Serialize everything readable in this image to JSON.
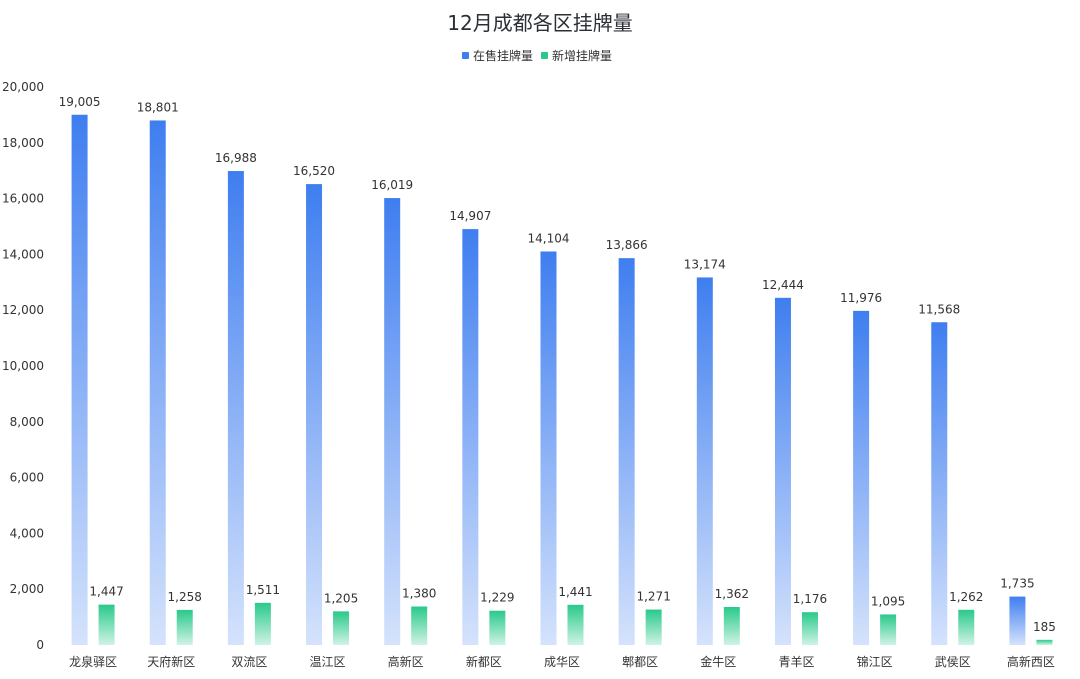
{
  "chart_data": {
    "type": "bar",
    "title": "12月成都各区挂牌量",
    "xlabel": "",
    "ylabel": "",
    "ylim": [
      0,
      20000
    ],
    "yticks": [
      0,
      2000,
      4000,
      6000,
      8000,
      10000,
      12000,
      14000,
      16000,
      18000,
      20000
    ],
    "ytick_labels": [
      "0",
      "2,000",
      "4,000",
      "6,000",
      "8,000",
      "10,000",
      "12,000",
      "14,000",
      "16,000",
      "18,000",
      "20,000"
    ],
    "grid": false,
    "legend_position": "top-center",
    "categories": [
      "龙泉驿区",
      "天府新区",
      "双流区",
      "温江区",
      "高新区",
      "新都区",
      "成华区",
      "郫都区",
      "金牛区",
      "青羊区",
      "锦江区",
      "武侯区",
      "高新西区"
    ],
    "series": [
      {
        "name": "在售挂牌量",
        "color": "#3f7ef0",
        "values": [
          19005,
          18801,
          16988,
          16520,
          16019,
          14907,
          14104,
          13866,
          13174,
          12444,
          11976,
          11568,
          1735
        ],
        "labels": [
          "19,005",
          "18,801",
          "16,988",
          "16,520",
          "16,019",
          "14,907",
          "14,104",
          "13,866",
          "13,174",
          "12,444",
          "11,976",
          "11,568",
          "1,735"
        ]
      },
      {
        "name": "新增挂牌量",
        "color": "#29c98a",
        "values": [
          1447,
          1258,
          1511,
          1205,
          1380,
          1229,
          1441,
          1271,
          1362,
          1176,
          1095,
          1262,
          185
        ],
        "labels": [
          "1,447",
          "1,258",
          "1,511",
          "1,205",
          "1,380",
          "1,229",
          "1,441",
          "1,271",
          "1,362",
          "1,176",
          "1,095",
          "1,262",
          "185"
        ]
      }
    ]
  }
}
